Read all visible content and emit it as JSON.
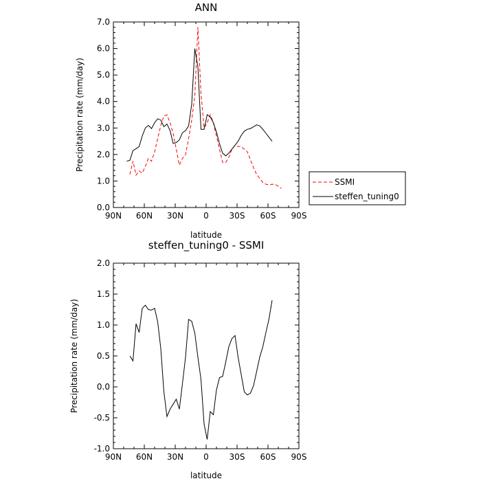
{
  "chart_data": [
    {
      "type": "line",
      "title": "ANN",
      "xlabel": "latitude",
      "ylabel": "Precipitation rate (mm/day)",
      "xlim": [
        90,
        -90
      ],
      "ylim": [
        0,
        7
      ],
      "x_ticks": [
        90,
        60,
        30,
        0,
        -30,
        -60,
        -90
      ],
      "x_tick_labels": [
        "90N",
        "60N",
        "30N",
        "0",
        "30S",
        "60S",
        "90S"
      ],
      "y_ticks": [
        0,
        1,
        2,
        3,
        4,
        5,
        6,
        7
      ],
      "y_tick_labels": [
        "0.0",
        "1.0",
        "2.0",
        "3.0",
        "4.0",
        "5.0",
        "6.0",
        "7.0"
      ],
      "legend_position": "outside-right",
      "series": [
        {
          "name": "SSMI",
          "color": "#ff0000",
          "dash": "dashed",
          "x": [
            74,
            71,
            68,
            65,
            62,
            59,
            56,
            53,
            50,
            47,
            44,
            41,
            38,
            35,
            32,
            29,
            26,
            23,
            20,
            17,
            14,
            11,
            8,
            5,
            2,
            -1,
            -4,
            -7,
            -10,
            -13,
            -16,
            -19,
            -22,
            -25,
            -28,
            -31,
            -34,
            -37,
            -40,
            -43,
            -46,
            -49,
            -52,
            -55,
            -58,
            -61,
            -64,
            -67,
            -70,
            -73
          ],
          "y": [
            1.25,
            1.75,
            1.22,
            1.38,
            1.3,
            1.55,
            1.85,
            1.75,
            2.1,
            2.6,
            3.1,
            3.45,
            3.5,
            3.2,
            2.8,
            2.2,
            1.6,
            1.85,
            2.0,
            2.6,
            3.3,
            4.2,
            6.8,
            4.3,
            3.0,
            3.2,
            3.5,
            3.2,
            2.7,
            2.2,
            1.7,
            1.7,
            1.9,
            2.2,
            2.35,
            2.3,
            2.3,
            2.2,
            2.1,
            1.8,
            1.5,
            1.25,
            1.1,
            0.95,
            0.88,
            0.85,
            0.88,
            0.87,
            0.8,
            0.72
          ]
        },
        {
          "name": "steffen_tuning0",
          "color": "#000000",
          "dash": "solid",
          "x": [
            77,
            74,
            71,
            68,
            65,
            62,
            59,
            56,
            53,
            50,
            47,
            44,
            41,
            38,
            35,
            32,
            29,
            26,
            23,
            20,
            17,
            14,
            11,
            8,
            5,
            2,
            -1,
            -4,
            -7,
            -10,
            -13,
            -16,
            -19,
            -22,
            -25,
            -28,
            -31,
            -34,
            -37,
            -40,
            -43,
            -46,
            -49,
            -52,
            -55,
            -58,
            -61,
            -64
          ],
          "y": [
            1.75,
            1.78,
            2.15,
            2.22,
            2.3,
            2.7,
            3.0,
            3.1,
            2.98,
            3.2,
            3.35,
            3.3,
            3.05,
            3.15,
            2.9,
            2.42,
            2.45,
            2.55,
            2.82,
            2.9,
            3.08,
            3.9,
            6.0,
            5.3,
            2.95,
            2.95,
            3.5,
            3.42,
            3.2,
            2.85,
            2.4,
            2.05,
            1.95,
            2.05,
            2.2,
            2.35,
            2.5,
            2.72,
            2.88,
            2.95,
            2.98,
            3.05,
            3.12,
            3.08,
            2.95,
            2.8,
            2.65,
            2.5
          ]
        }
      ]
    },
    {
      "type": "line",
      "title": "steffen_tuning0 - SSMI",
      "xlabel": "latitude",
      "ylabel": "Precipitation rate (mm/day)",
      "xlim": [
        90,
        -90
      ],
      "ylim": [
        -1,
        2
      ],
      "x_ticks": [
        90,
        60,
        30,
        0,
        -30,
        -60,
        -90
      ],
      "x_tick_labels": [
        "90N",
        "60N",
        "30N",
        "0",
        "30S",
        "60S",
        "90S"
      ],
      "y_ticks": [
        -1,
        -0.5,
        0,
        0.5,
        1,
        1.5,
        2
      ],
      "y_tick_labels": [
        "-1.0",
        "-0.5",
        "0.0",
        "0.5",
        "1.0",
        "1.5",
        "2.0"
      ],
      "series": [
        {
          "color": "#000000",
          "dash": "solid",
          "x": [
            74,
            71,
            68,
            65,
            62,
            59,
            56,
            53,
            50,
            47,
            44,
            41,
            38,
            35,
            32,
            29,
            26,
            23,
            20,
            17,
            14,
            11,
            8,
            5,
            2,
            -1,
            -4,
            -7,
            -10,
            -13,
            -16,
            -19,
            -22,
            -25,
            -28,
            -31,
            -34,
            -37,
            -40,
            -43,
            -46,
            -49,
            -52,
            -55,
            -58,
            -61,
            -64
          ],
          "y": [
            0.5,
            0.42,
            1.02,
            0.88,
            1.27,
            1.32,
            1.25,
            1.24,
            1.27,
            1.05,
            0.62,
            -0.08,
            -0.48,
            -0.36,
            -0.28,
            -0.2,
            -0.36,
            0.05,
            0.48,
            1.09,
            1.06,
            0.87,
            0.48,
            0.12,
            -0.6,
            -0.85,
            -0.4,
            -0.45,
            -0.05,
            0.15,
            0.17,
            0.4,
            0.65,
            0.78,
            0.83,
            0.48,
            0.2,
            -0.08,
            -0.13,
            -0.1,
            0.02,
            0.25,
            0.48,
            0.65,
            0.88,
            1.1,
            1.4
          ]
        }
      ]
    }
  ]
}
